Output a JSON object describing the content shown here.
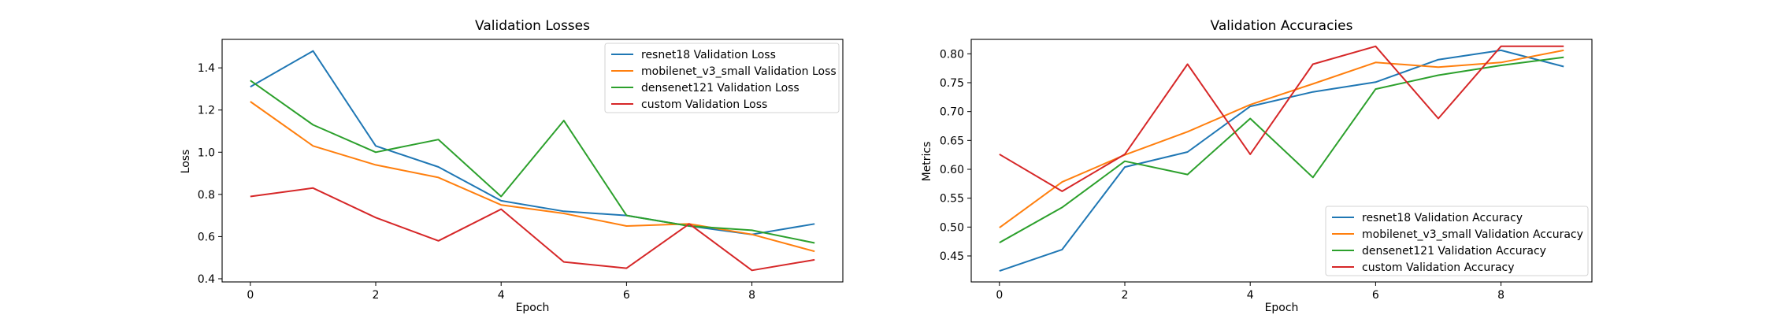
{
  "chart_data": [
    {
      "type": "line",
      "title": "Validation Losses",
      "xlabel": "Epoch",
      "ylabel": "Loss",
      "x": [
        0,
        1,
        2,
        3,
        4,
        5,
        6,
        7,
        8,
        9
      ],
      "xlim": [
        -0.45,
        9.45
      ],
      "ylim": [
        0.385,
        1.535
      ],
      "xticks": [
        0,
        2,
        4,
        6,
        8
      ],
      "yticks": [
        0.4,
        0.6,
        0.8,
        1.0,
        1.2,
        1.4
      ],
      "ytick_labels": [
        "0.4",
        "0.6",
        "0.8",
        "1.0",
        "1.2",
        "1.4"
      ],
      "legend_loc": "upper right",
      "grid": false,
      "series": [
        {
          "name": "resnet18 Validation Loss",
          "color": "#1f77b4",
          "values": [
            1.31,
            1.48,
            1.03,
            0.93,
            0.77,
            0.72,
            0.7,
            0.65,
            0.61,
            0.66
          ]
        },
        {
          "name": "mobilenet_v3_small Validation Loss",
          "color": "#ff7f0e",
          "values": [
            1.24,
            1.03,
            0.94,
            0.88,
            0.75,
            0.71,
            0.65,
            0.66,
            0.61,
            0.53
          ]
        },
        {
          "name": "densenet121 Validation Loss",
          "color": "#2ca02c",
          "values": [
            1.34,
            1.13,
            1.0,
            1.06,
            0.79,
            1.15,
            0.7,
            0.65,
            0.63,
            0.57
          ]
        },
        {
          "name": "custom Validation Loss",
          "color": "#d62728",
          "values": [
            0.79,
            0.83,
            0.69,
            0.58,
            0.73,
            0.48,
            0.45,
            0.66,
            0.44,
            0.49
          ]
        }
      ]
    },
    {
      "type": "line",
      "title": "Validation Accuracies",
      "xlabel": "Epoch",
      "ylabel": "Metrics",
      "x": [
        0,
        1,
        2,
        3,
        4,
        5,
        6,
        7,
        8,
        9
      ],
      "xlim": [
        -0.45,
        9.45
      ],
      "ylim": [
        0.405,
        0.825
      ],
      "xticks": [
        0,
        2,
        4,
        6,
        8
      ],
      "yticks": [
        0.45,
        0.5,
        0.55,
        0.6,
        0.65,
        0.7,
        0.75,
        0.8
      ],
      "ytick_labels": [
        "0.45",
        "0.50",
        "0.55",
        "0.60",
        "0.65",
        "0.70",
        "0.75",
        "0.80"
      ],
      "legend_loc": "lower right",
      "grid": false,
      "series": [
        {
          "name": "resnet18 Validation Accuracy",
          "color": "#1f77b4",
          "values": [
            0.424,
            0.461,
            0.604,
            0.63,
            0.709,
            0.734,
            0.751,
            0.79,
            0.806,
            0.778
          ]
        },
        {
          "name": "mobilenet_v3_small Validation Accuracy",
          "color": "#ff7f0e",
          "values": [
            0.499,
            0.578,
            0.625,
            0.665,
            0.712,
            0.748,
            0.785,
            0.777,
            0.785,
            0.806
          ]
        },
        {
          "name": "densenet121 Validation Accuracy",
          "color": "#2ca02c",
          "values": [
            0.473,
            0.534,
            0.614,
            0.591,
            0.688,
            0.586,
            0.739,
            0.763,
            0.78,
            0.794
          ]
        },
        {
          "name": "custom Validation Accuracy",
          "color": "#d62728",
          "values": [
            0.626,
            0.562,
            0.626,
            0.782,
            0.626,
            0.782,
            0.813,
            0.688,
            0.813,
            0.813
          ]
        }
      ]
    }
  ]
}
